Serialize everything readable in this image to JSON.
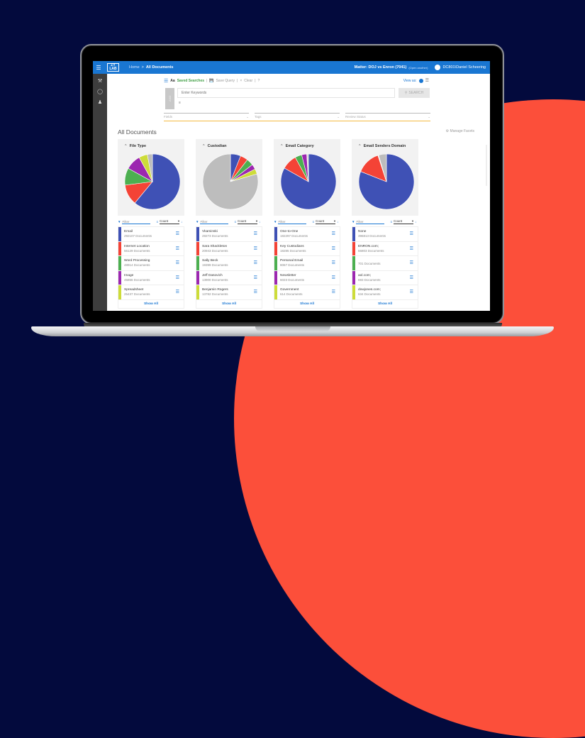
{
  "topbar": {
    "breadcrumb_home": "Home",
    "breadcrumb_sep": ">",
    "breadcrumb_current": "All Documents",
    "logo_text": "ZY LAB",
    "matter_label": "Matter: DOJ vs Enron (7041)",
    "open_another": "(Open another)",
    "user_name": "DC801\\Daniel Scheering"
  },
  "toolbar": {
    "aa": "Aa",
    "saved_searches": "Saved Searches",
    "save_query": "Save Query",
    "clear": "Clear",
    "help": "?",
    "view_as": "View as:",
    "and_label": "AND",
    "keyword_placeholder": "Enter Keywords",
    "search_label": "SEARCH"
  },
  "filters": [
    {
      "label": "Fields"
    },
    {
      "label": "Tags"
    },
    {
      "label": "Review Status"
    }
  ],
  "page_title": "All Documents",
  "manage_facets": "Manage Facets",
  "facet_controls": {
    "filter_placeholder": "Filter",
    "sort_value": "Count"
  },
  "show_all_label": "Show All",
  "colors": {
    "blue": "#3f51b5",
    "red": "#f44336",
    "green": "#4caf50",
    "purple": "#9c27b0",
    "yellow": "#cddc39",
    "gray": "#bdbdbd",
    "accent": "#1976d2",
    "orange_underline": "#f4b940"
  },
  "facets": [
    {
      "title": "File Type",
      "items": [
        {
          "name": "Email",
          "docs": "292107 Documents",
          "color": "#3f51b5"
        },
        {
          "name": "Internet Location",
          "docs": "56129 Documents",
          "color": "#f44336"
        },
        {
          "name": "Word Processing",
          "docs": "48914 Documents",
          "color": "#4caf50"
        },
        {
          "name": "Image",
          "docs": "45856 Documents",
          "color": "#9c27b0"
        },
        {
          "name": "Spreadsheet",
          "docs": "25437 Documents",
          "color": "#cddc39"
        }
      ]
    },
    {
      "title": "Custodian",
      "items": [
        {
          "name": "Vkaminski",
          "docs": "28273 Documents",
          "color": "#3f51b5"
        },
        {
          "name": "Sara Shackleton",
          "docs": "20943 Documents",
          "color": "#f44336"
        },
        {
          "name": "Sally Beck",
          "docs": "19399 Documents",
          "color": "#4caf50"
        },
        {
          "name": "Jeff Dasovich",
          "docs": "13900 Documents",
          "color": "#9c27b0"
        },
        {
          "name": "Benjamin Rogers",
          "docs": "13782 Documents",
          "color": "#cddc39"
        }
      ]
    },
    {
      "title": "Email Category",
      "items": [
        {
          "name": "One-to-One",
          "docs": "182297 Documents",
          "color": "#3f51b5"
        },
        {
          "name": "Key Custodians",
          "docs": "18285 Documents",
          "color": "#f44336"
        },
        {
          "name": "Personal Email",
          "docs": "8067 Documents",
          "color": "#4caf50"
        },
        {
          "name": "Newsletter",
          "docs": "6023 Documents",
          "color": "#9c27b0"
        },
        {
          "name": "Government",
          "docs": "614 Documents",
          "color": "#cddc39"
        }
      ]
    },
    {
      "title": "Email Senders Domain",
      "items": [
        {
          "name": "None",
          "docs": "396813 Documents",
          "color": "#3f51b5"
        },
        {
          "name": "ENRON.com;",
          "docs": "66803 Documents",
          "color": "#f44336"
        },
        {
          "name": "",
          "docs": "701 Documents",
          "color": "#4caf50"
        },
        {
          "name": "aol.com;",
          "docs": "693 Documents",
          "color": "#9c27b0"
        },
        {
          "name": "dowjones.com;",
          "docs": "634 Documents",
          "color": "#cddc39"
        }
      ]
    }
  ],
  "chart_data": [
    {
      "type": "pie",
      "title": "File Type",
      "categories": [
        "Email",
        "Internet Location",
        "Word Processing",
        "Image",
        "Spreadsheet",
        "Other"
      ],
      "values": [
        61,
        12,
        10,
        9,
        5,
        3
      ]
    },
    {
      "type": "pie",
      "title": "Custodian",
      "categories": [
        "Vkaminski",
        "Sara Shackleton",
        "Sally Beck",
        "Jeff Dasovich",
        "Benjamin Rogers",
        "Other"
      ],
      "values": [
        6,
        4.5,
        4,
        3,
        3,
        79.5
      ]
    },
    {
      "type": "pie",
      "title": "Email Category",
      "categories": [
        "One-to-One",
        "Key Custodians",
        "Personal Email",
        "Newsletter",
        "Government",
        "Other"
      ],
      "values": [
        84,
        9,
        4,
        3,
        0.3,
        0.7
      ]
    },
    {
      "type": "pie",
      "title": "Email Senders Domain",
      "categories": [
        "None",
        "ENRON.com;",
        "(blank)",
        "aol.com;",
        "dowjones.com;",
        "Other"
      ],
      "values": [
        81,
        14,
        0.15,
        0.14,
        0.13,
        4.6
      ]
    }
  ]
}
